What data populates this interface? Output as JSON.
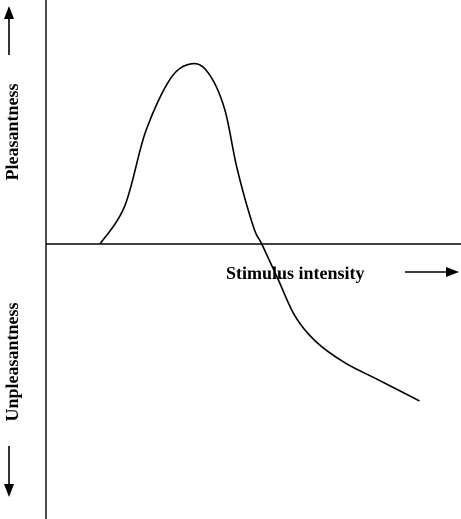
{
  "chart_data": {
    "type": "line",
    "title": "",
    "xlabel": "Stimulus intensity",
    "ylabel_positive": "Pleasantness",
    "ylabel_negative": "Unpleasantness",
    "grid": false,
    "axis_arrows": true,
    "line_color": "#000000",
    "xlim": [
      0,
      10
    ],
    "ylim": [
      -10,
      10
    ],
    "series": [
      {
        "x": [
          1.3,
          1.9,
          2.4,
          3.0,
          3.5,
          3.9,
          4.3,
          4.6,
          5.0,
          5.2,
          5.6,
          6.0,
          6.5,
          7.2,
          8.0,
          9.0
        ],
        "y": [
          0.0,
          1.8,
          5.3,
          7.8,
          8.5,
          8.1,
          6.4,
          3.6,
          0.8,
          0.0,
          -1.7,
          -3.4,
          -4.6,
          -5.6,
          -6.4,
          -7.4
        ]
      }
    ]
  }
}
